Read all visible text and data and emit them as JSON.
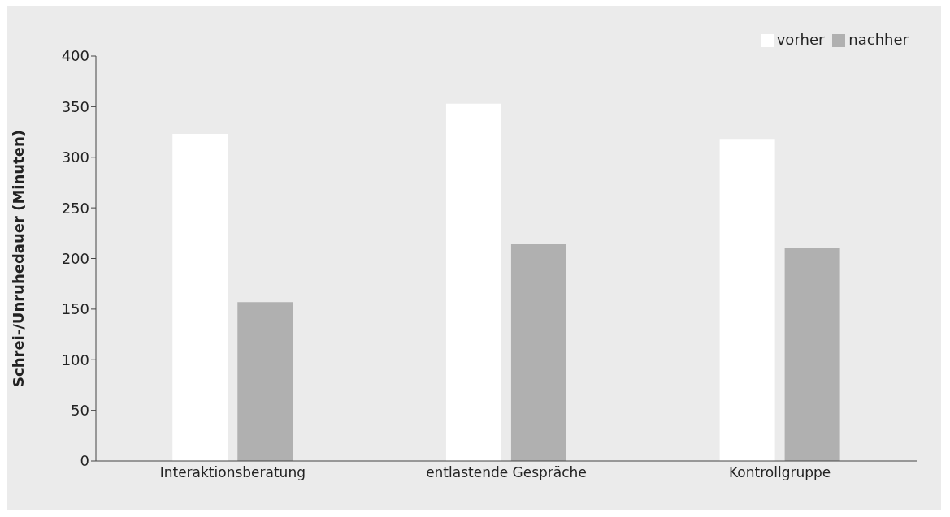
{
  "chart_data": {
    "type": "bar",
    "ylabel": "Schrei-/Unruhedauer (Minuten)",
    "categories": [
      "Interaktionsberatung",
      "entlastende Gespräche",
      "Kontrollgruppe"
    ],
    "series": [
      {
        "name": "vorher",
        "color": "#ffffff",
        "values": [
          323,
          353,
          318
        ]
      },
      {
        "name": "nachher",
        "color": "#b0b0b0",
        "values": [
          157,
          214,
          210
        ]
      }
    ],
    "ylim": [
      0,
      400
    ],
    "yticks": [
      0,
      50,
      100,
      150,
      200,
      250,
      300,
      350,
      400
    ],
    "grid": false,
    "legend": "top right"
  }
}
